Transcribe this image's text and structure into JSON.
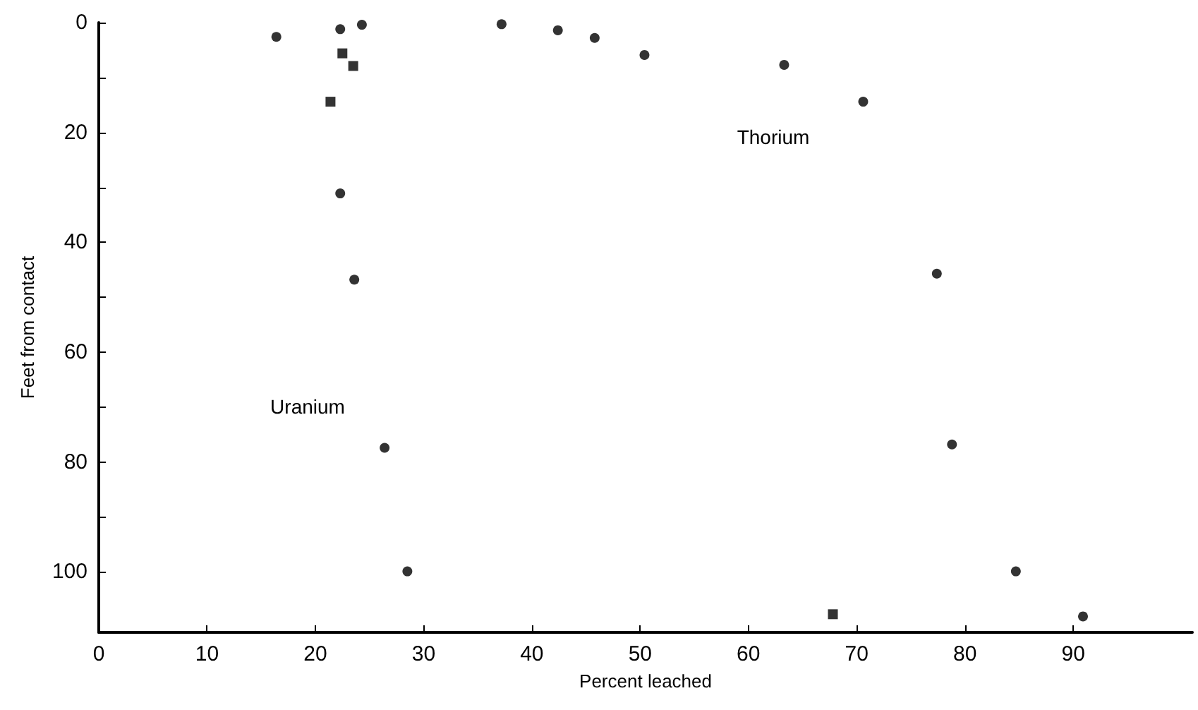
{
  "chart_data": {
    "type": "scatter",
    "xlabel": "Percent leached",
    "ylabel": "Feet from contact",
    "xlim": [
      0,
      101
    ],
    "xticks": [
      0,
      10,
      20,
      30,
      40,
      50,
      60,
      70,
      80,
      90
    ],
    "ylim": [
      111,
      0
    ],
    "yticks": [
      0,
      {
        "value": 10,
        "label": null
      },
      20,
      {
        "value": 30,
        "label": null
      },
      40,
      {
        "value": 50,
        "label": null
      },
      60,
      {
        "value": 70,
        "label": null
      },
      80,
      {
        "value": 90,
        "label": null
      },
      100
    ],
    "grid": false,
    "series": [
      {
        "color": "#000000",
        "marker": "circle",
        "x": [
          16.4,
          22.3,
          24.3,
          22.3,
          23.6,
          26.4,
          28.5
        ],
        "values": [
          2.6,
          1.2,
          0.4,
          31.1,
          46.8,
          77.4,
          99.9
        ]
      },
      {
        "color": "#000000",
        "marker": "square",
        "x": [
          22.5,
          23.5,
          21.4,
          67.8
        ],
        "values": [
          5.6,
          7.9,
          14.4,
          107.7
        ]
      },
      {
        "color": "#000000",
        "marker": "circle",
        "x": [
          37.2,
          42.4,
          45.8,
          50.4,
          63.3,
          70.6,
          77.4,
          78.8,
          84.7,
          90.9
        ],
        "values": [
          0.3,
          1.4,
          2.8,
          5.9,
          7.7,
          14.4,
          45.7,
          76.8,
          99.9,
          108.1
        ]
      }
    ],
    "annotations": [
      "Uranium",
      "Thorium"
    ]
  }
}
